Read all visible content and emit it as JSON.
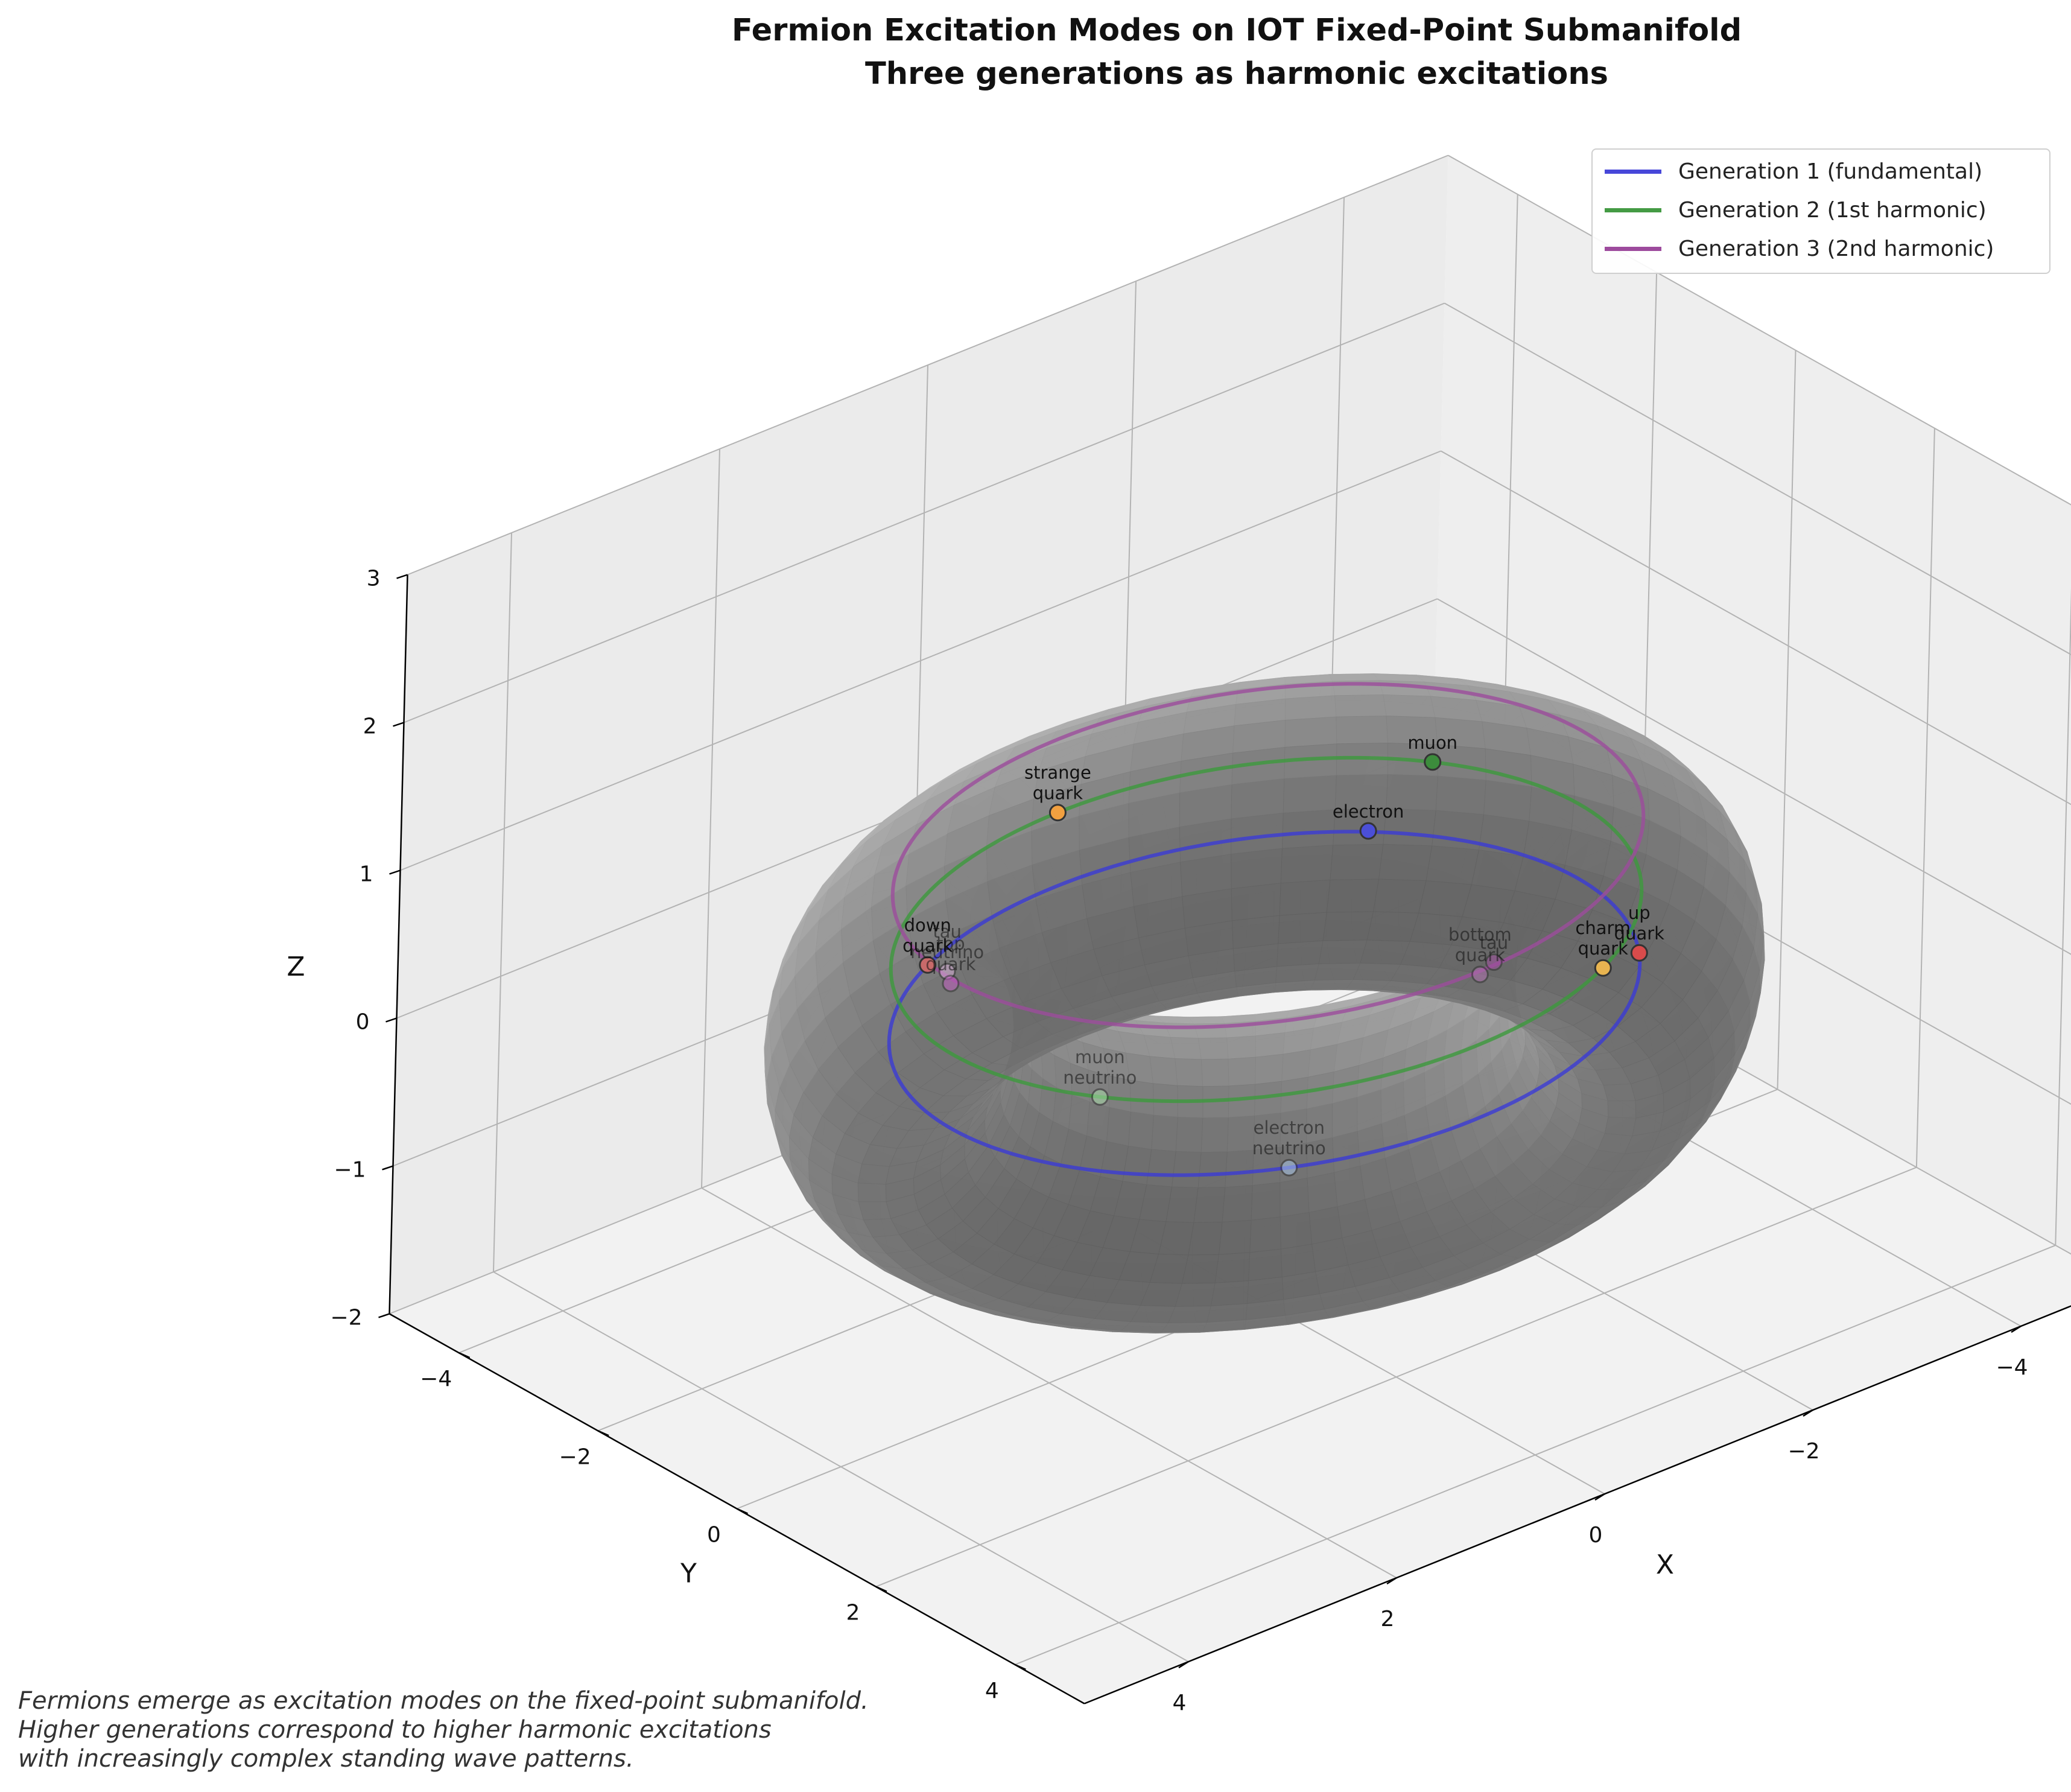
{
  "chart_data": {
    "type": "scatter",
    "title": "Fermion Excitation Modes on IOT Fixed-Point Submanifold",
    "subtitle": "Three generations as harmonic excitations",
    "xlabel": "X",
    "ylabel": "Y",
    "zlabel": "Z",
    "xlim": [
      -5,
      5
    ],
    "ylim": [
      -5,
      5
    ],
    "zlim": [
      -2,
      3
    ],
    "x_ticks": [
      "−4",
      "−2",
      "0",
      "2",
      "4"
    ],
    "y_ticks": [
      "−4",
      "−2",
      "0",
      "2",
      "4"
    ],
    "z_ticks": [
      "−2",
      "−1",
      "0",
      "1",
      "2",
      "3"
    ],
    "grid": true,
    "legend_position": "top-right",
    "surface": {
      "type": "torus",
      "major_radius": 3,
      "minor_radius": 1,
      "color": "#9e9e9e"
    },
    "series": [
      {
        "name": "Generation 1 (fundamental)",
        "color": "#3b3bd6",
        "radius": 3,
        "z": 0
      },
      {
        "name": "Generation 2 (1st harmonic)",
        "color": "#3c9a3c",
        "radius": 3,
        "z": 0.5
      },
      {
        "name": "Generation 3 (2nd harmonic)",
        "color": "#9c4c9c",
        "radius": 3,
        "z": 1.0
      }
    ],
    "points": [
      {
        "label": [
          "electron"
        ],
        "color": "#4b4fd8",
        "x": -2.3,
        "y": -1.95,
        "z": 0.0
      },
      {
        "label": [
          "electron",
          "neutrino"
        ],
        "color": "#a9c6e8",
        "x": 1.5,
        "y": 2.6,
        "z": 0.0
      },
      {
        "label": [
          "up",
          "quark"
        ],
        "color": "#d94b4b",
        "x": -2.6,
        "y": 1.5,
        "z": 0.0
      },
      {
        "label": [
          "down",
          "quark"
        ],
        "color": "#c86a6a",
        "x": 1.5,
        "y": -2.6,
        "z": 0.0
      },
      {
        "label": [
          "muon"
        ],
        "color": "#3c8c3c",
        "x": -2.6,
        "y": -1.5,
        "z": 0.5
      },
      {
        "label": [
          "muon",
          "neutrino"
        ],
        "color": "#a8dba8",
        "x": 2.6,
        "y": 1.5,
        "z": 0.5
      },
      {
        "label": [
          "charm",
          "quark"
        ],
        "color": "#e8b450",
        "x": -1.5,
        "y": 2.6,
        "z": 0.5
      },
      {
        "label": [
          "strange",
          "quark"
        ],
        "color": "#f2a040",
        "x": -0.0,
        "y": -3.0,
        "z": 0.5
      },
      {
        "label": [
          "tau"
        ],
        "color": "#a050a0",
        "x": -0.2,
        "y": 2.95,
        "z": 1.0
      },
      {
        "label": [
          "tau",
          "neutrino"
        ],
        "color": "#d8b0d8",
        "x": 2.95,
        "y": -0.2,
        "z": 1.0
      },
      {
        "label": [
          "top",
          "quark"
        ],
        "color": "#c060c0",
        "x": 3.05,
        "y": 0.0,
        "z": 1.0
      },
      {
        "label": [
          "bottom",
          "quark"
        ],
        "color": "#b070b0",
        "x": 0.0,
        "y": 3.05,
        "z": 1.0
      }
    ]
  },
  "legend": [
    {
      "label": "Generation 1 (fundamental)",
      "color": "#4747d9"
    },
    {
      "label": "Generation 2 (1st harmonic)",
      "color": "#449b44"
    },
    {
      "label": "Generation 3 (2nd harmonic)",
      "color": "#9d4b9d"
    }
  ],
  "caption": [
    "Fermions emerge as excitation modes on the fixed-point submanifold.",
    "Higher generations correspond to higher harmonic excitations",
    "with increasingly complex standing wave patterns."
  ]
}
